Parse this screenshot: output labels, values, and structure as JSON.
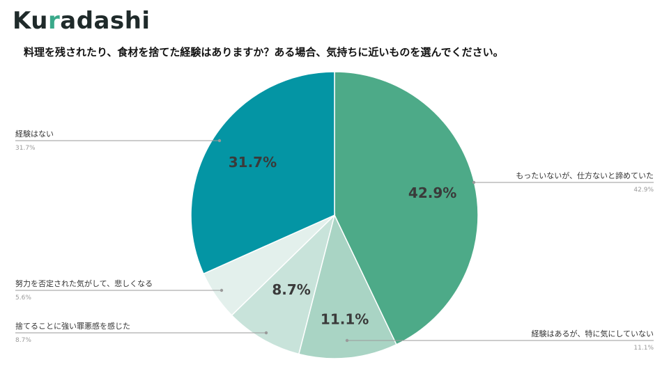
{
  "logo": {
    "text_before": "Ku",
    "dot": "r",
    "text_after": "adashi"
  },
  "chart_data": {
    "type": "pie",
    "title": "料理を残されたり、食材を捨てた経験はありますか？ある場合、気持ちに近いものを選んでください。",
    "slices": [
      {
        "label": "もったいないが、仕方ないと諦めていた",
        "value": 42.9,
        "display": "42.9%",
        "color": "#4daa88"
      },
      {
        "label": "経験はあるが、特に気にしていない",
        "value": 11.1,
        "display": "11.1%",
        "color": "#a9d4c4"
      },
      {
        "label": "捨てることに強い罪悪感を感じた",
        "value": 8.7,
        "display": "8.7%",
        "color": "#c8e3da"
      },
      {
        "label": "努力を否定された気がして、悲しくなる",
        "value": 5.6,
        "display": "5.6%",
        "color": "#e3f0ec"
      },
      {
        "label": "経験はない",
        "value": 31.7,
        "display": "31.7%",
        "color": "#0495a4"
      }
    ],
    "legend_values": [
      "42.9%",
      "11.1%",
      "8.7%",
      "5.6%",
      "31.7%"
    ]
  }
}
